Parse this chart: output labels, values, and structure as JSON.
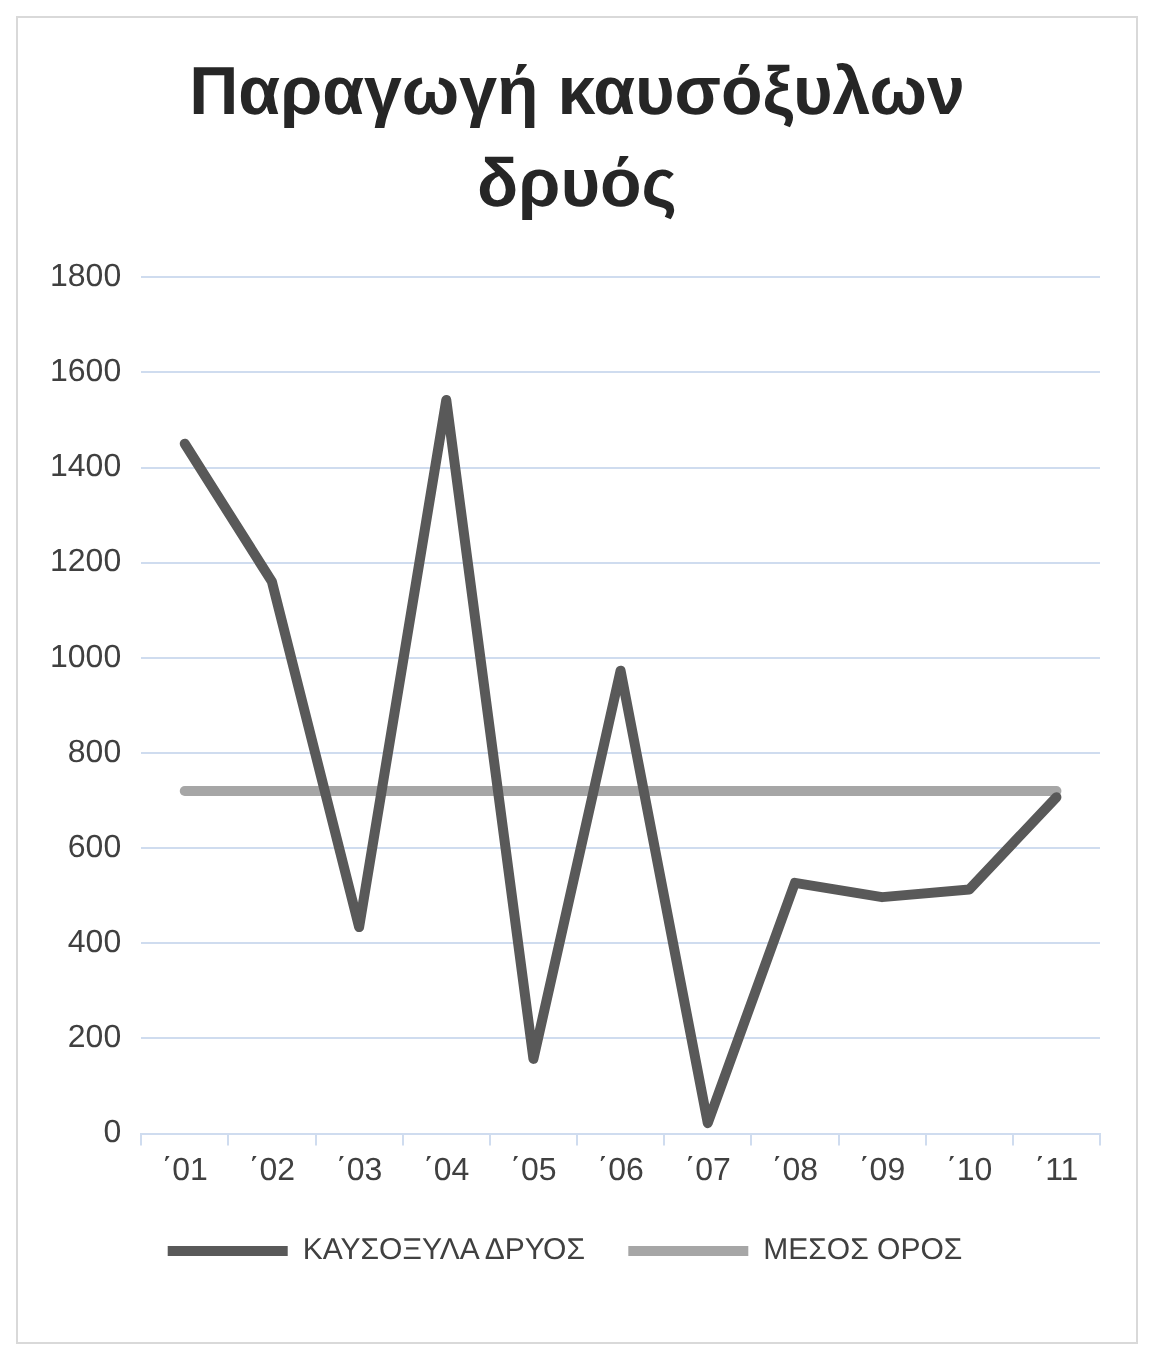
{
  "chart_data": {
    "type": "line",
    "title": "Παραγωγή καυσόξυλων δρυός",
    "categories": [
      "΄01",
      "΄02",
      "΄03",
      "΄04",
      "΄05",
      "΄06",
      "΄07",
      "΄08",
      "΄09",
      "΄10",
      "΄11"
    ],
    "series": [
      {
        "name": "ΚΑΥΣΟΞΥΛΑ ΔΡΥΟΣ",
        "color": "#595959",
        "values": [
          1450,
          1160,
          434,
          1542,
          157,
          973,
          22,
          527,
          497,
          513,
          707
        ]
      },
      {
        "name": "ΜΕΣΟΣ ΟΡΟΣ",
        "color": "#a6a6a6",
        "values": [
          720,
          720,
          720,
          720,
          720,
          720,
          720,
          720,
          720,
          720,
          720
        ]
      }
    ],
    "ylim": [
      0,
      1800
    ],
    "yticks": [
      0,
      200,
      400,
      600,
      800,
      1000,
      1200,
      1400,
      1600,
      1800
    ],
    "grid": "y",
    "legend": "bottom",
    "marker": "none",
    "line_style": "solid"
  }
}
